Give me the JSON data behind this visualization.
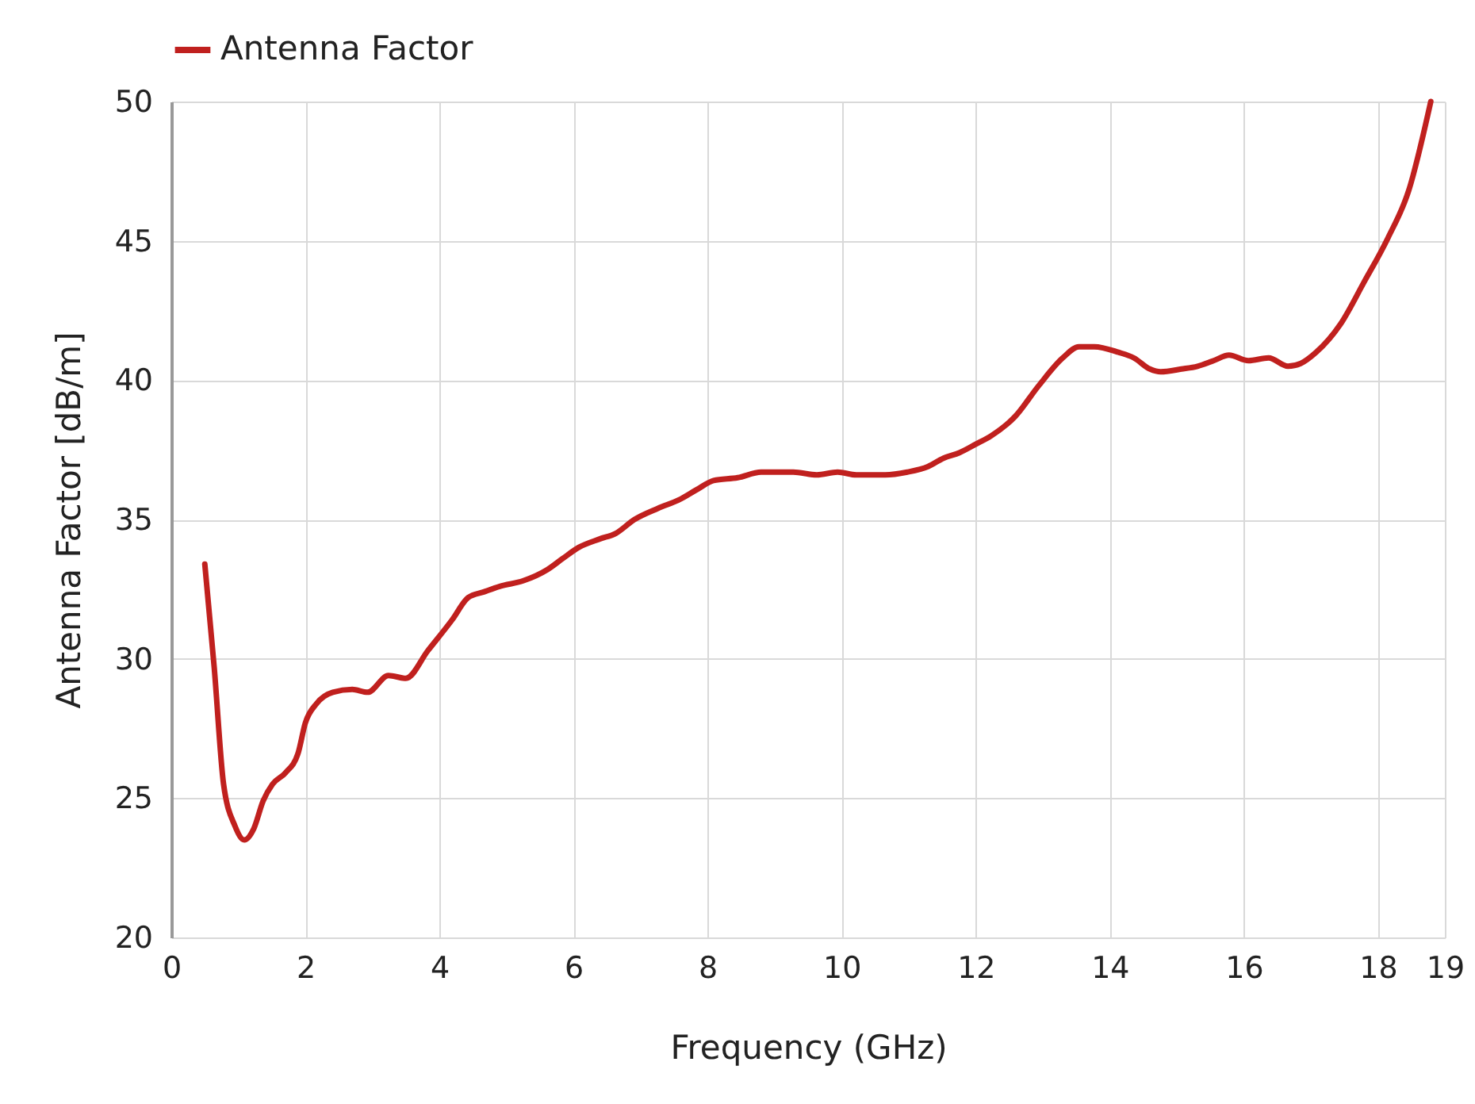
{
  "chart_data": {
    "type": "line",
    "xlabel": "Frequency (GHz)",
    "ylabel": "Antenna Factor [dB/m]",
    "legend": "top",
    "grid": true,
    "marker": "none",
    "line_style": "solid",
    "xlim": [
      0,
      19
    ],
    "xticks": [
      0,
      2,
      4,
      6,
      8,
      10,
      12,
      14,
      16,
      18,
      19
    ],
    "ylim": [
      20,
      50
    ],
    "yticks": [
      20,
      25,
      30,
      35,
      40,
      45,
      50
    ],
    "series": [
      {
        "name": "Antenna Factor",
        "color": "#c0201e",
        "x": [
          0.5,
          0.64,
          0.78,
          0.95,
          1.09,
          1.23,
          1.37,
          1.51,
          1.7,
          1.89,
          2.0,
          2.17,
          2.41,
          2.7,
          2.93,
          3.24,
          3.5,
          3.83,
          4.19,
          4.43,
          4.66,
          4.9,
          5.25,
          5.61,
          5.84,
          6.08,
          6.39,
          6.63,
          6.91,
          7.26,
          7.57,
          7.86,
          8.09,
          8.45,
          8.8,
          9.28,
          9.63,
          9.94,
          10.22,
          10.65,
          10.98,
          11.29,
          11.52,
          11.76,
          12.0,
          12.23,
          12.59,
          12.94,
          13.3,
          13.54,
          13.77,
          14.13,
          14.36,
          14.6,
          14.76,
          15.07,
          15.31,
          15.55,
          15.78,
          16.07,
          16.37,
          16.66,
          16.85,
          17.08,
          17.44,
          17.79,
          18.15,
          18.46,
          18.79
        ],
        "values": [
          33.4,
          29.7,
          25.5,
          24.0,
          23.5,
          23.9,
          24.9,
          25.5,
          25.9,
          26.6,
          27.7,
          28.4,
          28.8,
          28.9,
          28.8,
          29.4,
          29.3,
          30.3,
          31.4,
          32.2,
          32.4,
          32.6,
          32.8,
          33.2,
          33.6,
          34.0,
          34.3,
          34.5,
          35.0,
          35.4,
          35.7,
          36.1,
          36.4,
          36.5,
          36.7,
          36.7,
          36.6,
          36.7,
          36.6,
          36.6,
          36.7,
          36.9,
          37.2,
          37.4,
          37.7,
          38.0,
          38.7,
          39.8,
          40.8,
          41.2,
          41.2,
          41.0,
          40.8,
          40.4,
          40.3,
          40.4,
          40.5,
          40.7,
          40.9,
          40.7,
          40.8,
          40.5,
          40.6,
          41.0,
          42.0,
          43.5,
          45.1,
          46.8,
          50.0
        ]
      }
    ]
  }
}
